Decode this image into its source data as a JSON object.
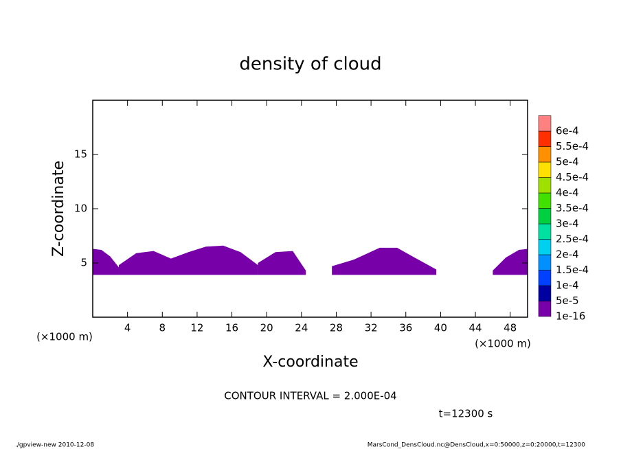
{
  "chart_data": {
    "type": "contour",
    "title": "density of cloud",
    "xlabel": "X-coordinate",
    "ylabel": "Z-coordinate",
    "x_unit": "(×1000 m)",
    "x_unit_right": "(×1000 m)",
    "xlim": [
      0,
      50
    ],
    "ylim": [
      0,
      20
    ],
    "xticks": [
      4,
      8,
      12,
      16,
      20,
      24,
      28,
      32,
      36,
      40,
      44,
      48
    ],
    "yticks": [
      5,
      10,
      15
    ],
    "base": 3.9,
    "patches": [
      {
        "x": [
          0,
          1,
          2,
          3
        ],
        "top": [
          6.3,
          6.2,
          5.6,
          4.6
        ]
      },
      {
        "x": [
          3,
          5,
          7,
          9,
          11,
          13,
          15,
          17,
          19
        ],
        "top": [
          4.8,
          5.9,
          6.1,
          5.4,
          6.0,
          6.5,
          6.6,
          6.0,
          4.8
        ]
      },
      {
        "x": [
          19,
          21,
          23,
          24.5
        ],
        "top": [
          5.0,
          6.0,
          6.1,
          4.3
        ]
      },
      {
        "x": [
          27.5,
          30,
          33,
          35,
          37,
          39.5
        ],
        "top": [
          4.7,
          5.3,
          6.4,
          6.4,
          5.5,
          4.4
        ]
      },
      {
        "x": [
          46,
          47.5,
          49,
          50
        ],
        "top": [
          4.3,
          5.5,
          6.2,
          6.3
        ]
      }
    ],
    "patch_color": "#7800a8",
    "levels": [
      {
        "value": 1e-16,
        "label": "1e-16"
      },
      {
        "value": 5e-05,
        "label": "5e-5"
      },
      {
        "value": 0.0001,
        "label": "1e-4"
      },
      {
        "value": 0.00015,
        "label": "1.5e-4"
      },
      {
        "value": 0.0002,
        "label": "2e-4"
      },
      {
        "value": 0.00025,
        "label": "2.5e-4"
      },
      {
        "value": 0.0003,
        "label": "3e-4"
      },
      {
        "value": 0.00035,
        "label": "3.5e-4"
      },
      {
        "value": 0.0004,
        "label": "4e-4"
      },
      {
        "value": 0.00045,
        "label": "4.5e-4"
      },
      {
        "value": 0.0005,
        "label": "5e-4"
      },
      {
        "value": 0.00055,
        "label": "5.5e-4"
      },
      {
        "value": 0.0006,
        "label": "6e-4"
      }
    ],
    "level_colors": [
      "#7800a8",
      "#0000a0",
      "#0040ff",
      "#0090ff",
      "#00d0f0",
      "#00e0a0",
      "#00d040",
      "#40e000",
      "#a0e000",
      "#ffe000",
      "#ff9000",
      "#ff3000",
      "#ff8080"
    ],
    "contour_interval": "CONTOUR INTERVAL = 2.000E-04",
    "time_label": "t=12300 s",
    "footer_left": "./gpview-new  2010-12-08",
    "footer_right": "MarsCond_DensCloud.nc@DensCloud,x=0:50000,z=0:20000,t=12300"
  }
}
